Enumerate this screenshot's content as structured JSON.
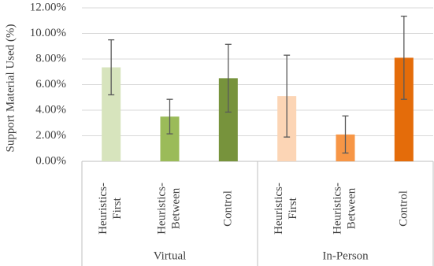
{
  "chart_data": {
    "type": "bar",
    "ylabel": "Support Material Used (%)",
    "ylim": [
      0,
      12
    ],
    "yticks": [
      {
        "value": 0,
        "label": "0.00%"
      },
      {
        "value": 2,
        "label": "2.00%"
      },
      {
        "value": 4,
        "label": "4.00%"
      },
      {
        "value": 6,
        "label": "6.00%"
      },
      {
        "value": 8,
        "label": "8.00%"
      },
      {
        "value": 10,
        "label": "10.00%"
      },
      {
        "value": 12,
        "label": "12.00%"
      }
    ],
    "grid": true,
    "groups": [
      {
        "name": "Virtual",
        "categories": [
          "Heuristics-First",
          "Heuristics-Between",
          "Control"
        ],
        "values": [
          7.35,
          3.5,
          6.5
        ],
        "errors": [
          2.15,
          1.35,
          2.65
        ],
        "colors": [
          "#d7e4bd",
          "#9bbb59",
          "#77933c"
        ]
      },
      {
        "name": "In-Person",
        "categories": [
          "Heuristics-First",
          "Heuristics-Between",
          "Control"
        ],
        "values": [
          5.1,
          2.1,
          8.1
        ],
        "errors": [
          3.2,
          1.45,
          3.25
        ],
        "colors": [
          "#fcd5b5",
          "#f79646",
          "#e46c0a"
        ]
      }
    ]
  }
}
